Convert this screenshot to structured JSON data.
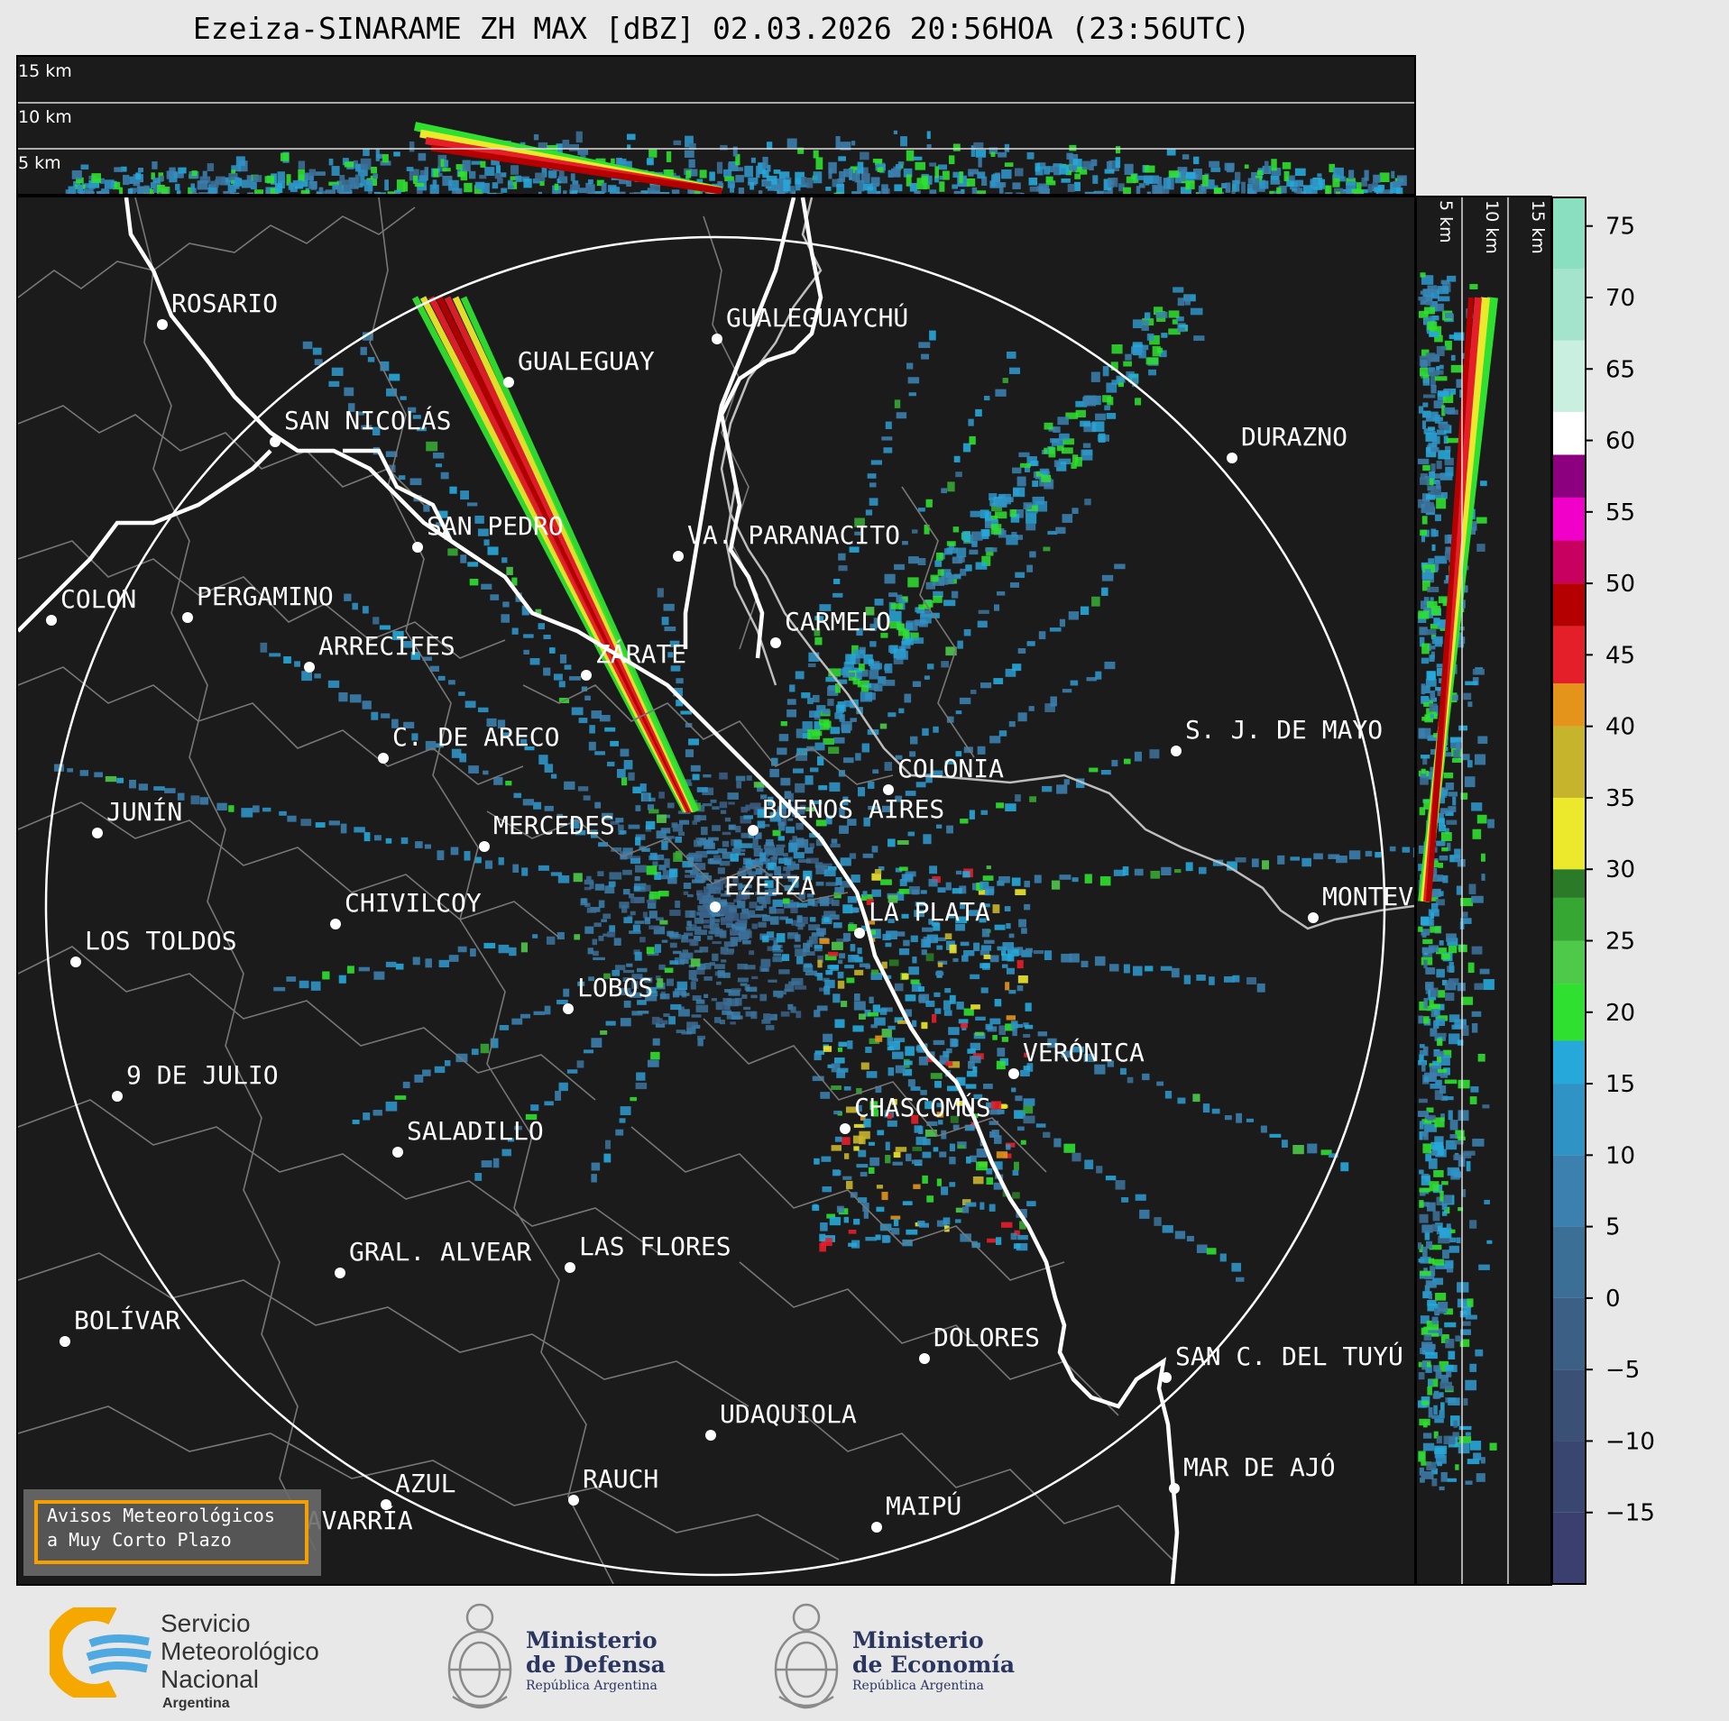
{
  "title": "Ezeiza-SINARAME ZH MAX [dBZ] 02.03.2026 20:56HOA (23:56UTC)",
  "top_panel": {
    "heights": [
      "15 km",
      "10 km",
      "5 km"
    ]
  },
  "side_panel": {
    "heights": [
      "5 km",
      "10 km",
      "15 km"
    ]
  },
  "colorbar": {
    "ticks": [
      "75",
      "70",
      "65",
      "60",
      "55",
      "50",
      "45",
      "40",
      "35",
      "30",
      "25",
      "20",
      "15",
      "10",
      "5",
      "0",
      "−5",
      "−10",
      "−15"
    ],
    "stops": [
      {
        "min": -20,
        "color": "#3a3f70"
      },
      {
        "min": -15,
        "color": "#39466f"
      },
      {
        "min": -10,
        "color": "#3b5075"
      },
      {
        "min": -5,
        "color": "#3c5f86"
      },
      {
        "min": 0,
        "color": "#3b6f96"
      },
      {
        "min": 5,
        "color": "#3b80ae"
      },
      {
        "min": 10,
        "color": "#2f93c6"
      },
      {
        "min": 15,
        "color": "#27a8da"
      },
      {
        "min": 18,
        "color": "#2fe030"
      },
      {
        "min": 22,
        "color": "#4ec94a"
      },
      {
        "min": 25,
        "color": "#37a734"
      },
      {
        "min": 28,
        "color": "#2a7a28"
      },
      {
        "min": 30,
        "color": "#ece82c"
      },
      {
        "min": 35,
        "color": "#c6b52c"
      },
      {
        "min": 40,
        "color": "#e4941a"
      },
      {
        "min": 43,
        "color": "#e51f2a"
      },
      {
        "min": 47,
        "color": "#b50000"
      },
      {
        "min": 50,
        "color": "#c80060"
      },
      {
        "min": 53,
        "color": "#f000c8"
      },
      {
        "min": 56,
        "color": "#8c0080"
      },
      {
        "min": 59,
        "color": "#ffffff"
      },
      {
        "min": 62,
        "color": "#c8efe0"
      },
      {
        "min": 67,
        "color": "#a4e4cc"
      },
      {
        "min": 72,
        "color": "#8adfc0"
      }
    ]
  },
  "cities": [
    {
      "name": "ROSARIO"
    },
    {
      "name": "GUALEGUAYCHÚ"
    },
    {
      "name": "GUALEGUAY"
    },
    {
      "name": "SAN NICOLÁS"
    },
    {
      "name": "DURAZNO"
    },
    {
      "name": "SAN PEDRO"
    },
    {
      "name": "VA. PARANACITO"
    },
    {
      "name": "COLON"
    },
    {
      "name": "PERGAMINO"
    },
    {
      "name": "CARMELO"
    },
    {
      "name": "ARRECIFES"
    },
    {
      "name": "ZÁRATE"
    },
    {
      "name": "S. J. DE MAYO"
    },
    {
      "name": "C. DE ARECO"
    },
    {
      "name": "COLONIA"
    },
    {
      "name": "JUNÍN"
    },
    {
      "name": "BUENOS AIRES"
    },
    {
      "name": "MERCEDES"
    },
    {
      "name": "MONTEVIDEO"
    },
    {
      "name": "EZEIZA"
    },
    {
      "name": "CHIVILCOY"
    },
    {
      "name": "LA PLATA"
    },
    {
      "name": "LOS TOLDOS"
    },
    {
      "name": "LOBOS"
    },
    {
      "name": "VERÓNICA"
    },
    {
      "name": "9 DE JULIO"
    },
    {
      "name": "CHASCOMÚS"
    },
    {
      "name": "SALADILLO"
    },
    {
      "name": "GRAL. ALVEAR"
    },
    {
      "name": "LAS FLORES"
    },
    {
      "name": "BOLÍVAR"
    },
    {
      "name": "DOLORES"
    },
    {
      "name": "SAN C. DEL TUYÚ"
    },
    {
      "name": "UDAQUIOLA"
    },
    {
      "name": "MAR DE AJÓ"
    },
    {
      "name": "AZUL"
    },
    {
      "name": "RAUCH"
    },
    {
      "name": "OLAVARRÍA"
    },
    {
      "name": "MAIPÚ"
    }
  ],
  "notice": {
    "line1": "Avisos Meteorológicos",
    "line2": "a Muy Corto Plazo"
  },
  "logos": {
    "smn_line1": "Servicio",
    "smn_line2": "Meteorológico",
    "smn_line3": "Nacional",
    "smn_country": "Argentina",
    "defensa_line1": "Ministerio",
    "defensa_line2": "de Defensa",
    "defensa_sub": "República Argentina",
    "economia_line1": "Ministerio",
    "economia_line2": "de Economía",
    "economia_sub": "República Argentina"
  }
}
